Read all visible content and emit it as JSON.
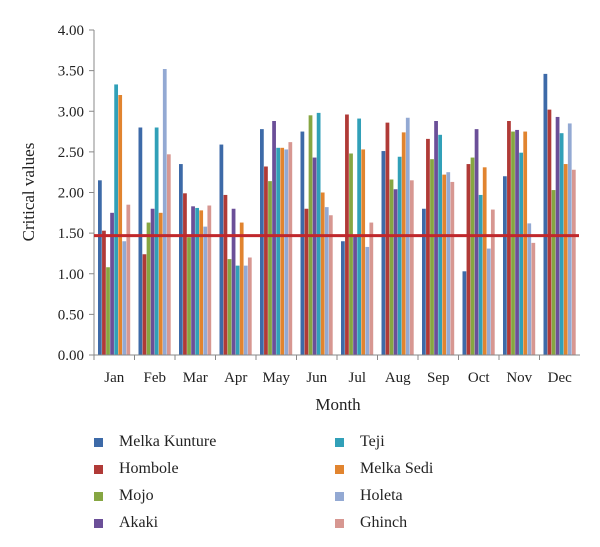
{
  "chart_data": {
    "type": "bar",
    "title": "",
    "xlabel": "Month",
    "ylabel": "Critical values",
    "ylim": [
      0,
      4
    ],
    "yticks": [
      "0.00",
      "0.50",
      "1.00",
      "1.50",
      "2.00",
      "2.50",
      "3.00",
      "3.50",
      "4.00"
    ],
    "categories": [
      "Jan",
      "Feb",
      "Mar",
      "Apr",
      "May",
      "Jun",
      "Jul",
      "Aug",
      "Sep",
      "Oct",
      "Nov",
      "Dec"
    ],
    "series": [
      {
        "name": "Melka Kunture",
        "color": "#3d6aa8",
        "values": [
          2.15,
          2.8,
          2.35,
          2.59,
          2.78,
          2.75,
          1.4,
          2.51,
          1.8,
          1.03,
          2.2,
          3.46
        ]
      },
      {
        "name": "Hombole",
        "color": "#b03a37",
        "values": [
          1.53,
          1.24,
          1.99,
          1.97,
          2.32,
          1.8,
          2.96,
          2.86,
          2.66,
          2.35,
          2.88,
          3.02
        ]
      },
      {
        "name": "Mojo",
        "color": "#86a642",
        "values": [
          1.08,
          1.63,
          1.45,
          1.18,
          2.14,
          2.95,
          2.48,
          2.16,
          2.41,
          2.43,
          2.75,
          2.03
        ]
      },
      {
        "name": "Akaki",
        "color": "#6b4f98",
        "values": [
          1.75,
          1.8,
          1.83,
          1.8,
          2.88,
          2.43,
          1.48,
          2.04,
          2.88,
          2.78,
          2.77,
          2.93
        ]
      },
      {
        "name": "Teji",
        "color": "#31a0b8",
        "values": [
          3.33,
          2.8,
          1.81,
          1.1,
          2.55,
          2.98,
          2.91,
          2.44,
          2.71,
          1.97,
          2.49,
          2.73
        ]
      },
      {
        "name": "Melka Sedi",
        "color": "#e1842f",
        "values": [
          3.2,
          1.75,
          1.78,
          1.63,
          2.55,
          2.0,
          2.53,
          2.74,
          2.22,
          2.31,
          2.75,
          2.35
        ]
      },
      {
        "name": "Holeta",
        "color": "#93a9d3",
        "values": [
          1.4,
          3.52,
          1.58,
          1.1,
          2.53,
          1.82,
          1.33,
          2.92,
          2.25,
          1.31,
          1.62,
          2.85
        ]
      },
      {
        "name": "Ghinch",
        "color": "#d79791",
        "values": [
          1.85,
          2.47,
          1.84,
          1.2,
          2.62,
          1.72,
          1.63,
          2.15,
          2.13,
          1.79,
          1.38,
          2.28
        ]
      }
    ],
    "threshold": {
      "value": 1.47,
      "color": "#c0282c"
    },
    "legend_position": "bottom"
  }
}
